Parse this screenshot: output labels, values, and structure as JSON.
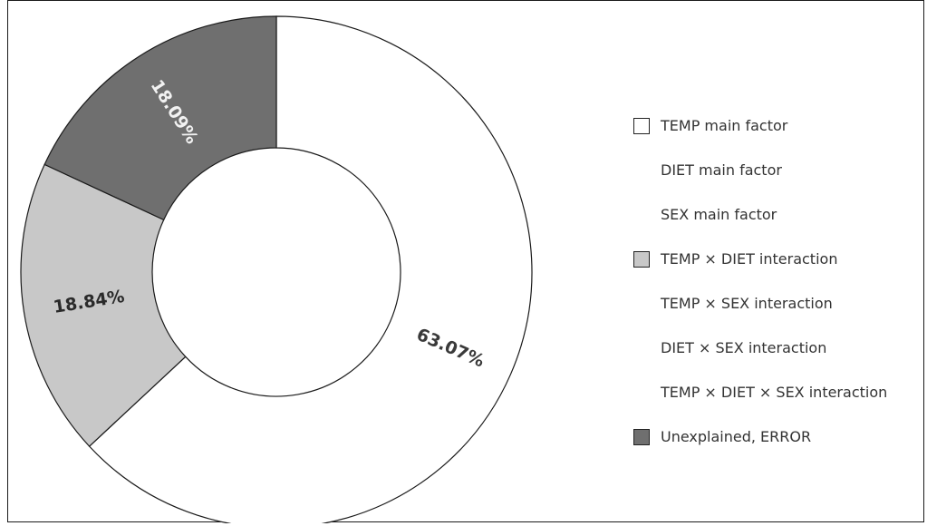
{
  "chart_data": {
    "type": "pie",
    "variant": "donut",
    "slices": [
      {
        "label": "TEMP main factor",
        "value": 63.07,
        "value_label": "63.07%",
        "color": "#ffffff",
        "label_color": "#3a3a3a"
      },
      {
        "label": "DIET main factor",
        "value": 0,
        "value_label": "",
        "color": "none"
      },
      {
        "label": "SEX main factor",
        "value": 0,
        "value_label": "",
        "color": "none"
      },
      {
        "label": "TEMP × DIET interaction",
        "value": 18.84,
        "value_label": "18.84%",
        "color": "#c8c8c8",
        "label_color": "#2a2a2a"
      },
      {
        "label": "TEMP × SEX interaction",
        "value": 0,
        "value_label": "",
        "color": "none"
      },
      {
        "label": "DIET × SEX interaction",
        "value": 0,
        "value_label": "",
        "color": "none"
      },
      {
        "label": "TEMP × DIET × SEX interaction",
        "value": 0,
        "value_label": "",
        "color": "none"
      },
      {
        "label": "Unexplained, ERROR",
        "value": 18.09,
        "value_label": "18.09%",
        "color": "#6f6f6f",
        "label_color": "#f2f2f2"
      }
    ],
    "legend_position": "right"
  }
}
